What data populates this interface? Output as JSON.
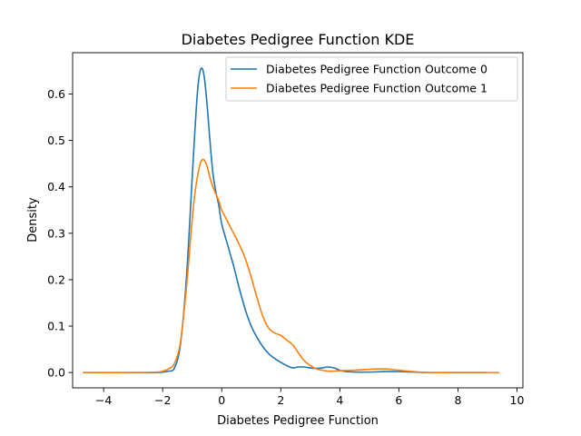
{
  "chart_data": {
    "type": "line",
    "title": "Diabetes Pedigree Function KDE",
    "xlabel": "Diabetes Pedigree Function",
    "ylabel": "Density",
    "xlim": [
      -5.05,
      10.2
    ],
    "ylim": [
      -0.033,
      0.689
    ],
    "xticks": [
      -4,
      -2,
      0,
      2,
      4,
      6,
      8,
      10
    ],
    "yticks": [
      0.0,
      0.1,
      0.2,
      0.3,
      0.4,
      0.5,
      0.6
    ],
    "grid": false,
    "legend_position": "top-right",
    "series": [
      {
        "name": "Diabetes Pedigree Function Outcome 0",
        "color": "#1f77b4",
        "x": [
          -4.7,
          -3.0,
          -2.2,
          -2.0,
          -1.8,
          -1.6,
          -1.4,
          -1.2,
          -1.0,
          -0.9,
          -0.8,
          -0.7,
          -0.6,
          -0.5,
          -0.4,
          -0.3,
          -0.2,
          -0.1,
          0.0,
          0.2,
          0.4,
          0.6,
          0.8,
          1.0,
          1.2,
          1.4,
          1.6,
          1.8,
          2.0,
          2.2,
          2.4,
          2.6,
          2.8,
          3.0,
          3.2,
          3.4,
          3.6,
          3.8,
          4.0,
          4.2,
          4.5,
          5.0,
          5.5,
          6.0,
          6.5,
          7.0,
          8.0,
          9.0
        ],
        "y": [
          0.0,
          0.0,
          0.0,
          0.001,
          0.003,
          0.01,
          0.06,
          0.2,
          0.42,
          0.53,
          0.62,
          0.655,
          0.64,
          0.58,
          0.5,
          0.43,
          0.39,
          0.36,
          0.32,
          0.275,
          0.23,
          0.18,
          0.135,
          0.1,
          0.075,
          0.055,
          0.04,
          0.03,
          0.022,
          0.015,
          0.01,
          0.012,
          0.012,
          0.01,
          0.009,
          0.01,
          0.012,
          0.01,
          0.005,
          0.002,
          0.001,
          0.001,
          0.002,
          0.002,
          0.001,
          0.0,
          0.0,
          0.0
        ]
      },
      {
        "name": "Diabetes Pedigree Function Outcome 1",
        "color": "#ff7f0e",
        "x": [
          -4.7,
          -3.0,
          -2.2,
          -2.0,
          -1.8,
          -1.6,
          -1.4,
          -1.2,
          -1.0,
          -0.9,
          -0.8,
          -0.7,
          -0.6,
          -0.5,
          -0.4,
          -0.3,
          -0.2,
          -0.1,
          0.0,
          0.2,
          0.4,
          0.6,
          0.8,
          1.0,
          1.2,
          1.4,
          1.6,
          1.8,
          2.0,
          2.2,
          2.4,
          2.6,
          2.8,
          3.0,
          3.2,
          3.4,
          3.6,
          3.8,
          4.0,
          4.5,
          5.0,
          5.5,
          6.0,
          6.5,
          7.0,
          8.0,
          9.4
        ],
        "y": [
          0.0,
          0.0,
          0.001,
          0.003,
          0.008,
          0.02,
          0.065,
          0.18,
          0.33,
          0.39,
          0.43,
          0.455,
          0.458,
          0.445,
          0.42,
          0.4,
          0.385,
          0.37,
          0.35,
          0.325,
          0.3,
          0.275,
          0.245,
          0.205,
          0.16,
          0.12,
          0.095,
          0.085,
          0.08,
          0.07,
          0.06,
          0.042,
          0.025,
          0.015,
          0.008,
          0.005,
          0.003,
          0.003,
          0.004,
          0.005,
          0.007,
          0.008,
          0.005,
          0.002,
          0.0,
          0.0,
          0.0
        ]
      }
    ]
  }
}
